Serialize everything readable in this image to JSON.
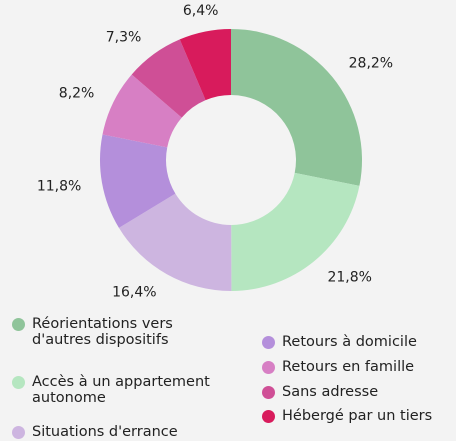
{
  "chart_data": {
    "type": "donut",
    "categories": [
      "Réorientations vers\nd'autres dispositifs",
      "Accès à un appartement\nautonome",
      "Situations d'errance",
      "Retours à domicile",
      "Retours en famille",
      "Sans adresse",
      "Hébergé par un tiers"
    ],
    "values": [
      28.2,
      21.8,
      16.4,
      11.8,
      8.2,
      7.3,
      6.4
    ],
    "value_labels": [
      "28,2%",
      "21,8%",
      "16,4%",
      "11,8%",
      "8,2%",
      "7,3%",
      "6,4%"
    ],
    "colors": [
      "#8fc49a",
      "#b5e6c0",
      "#cdb5e0",
      "#b48fdb",
      "#d77fc4",
      "#cf4f96",
      "#d81b5c"
    ]
  }
}
